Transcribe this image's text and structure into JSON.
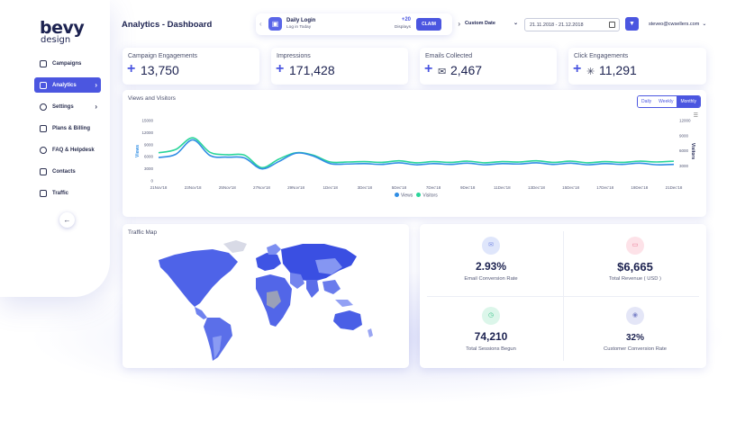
{
  "brand": {
    "line1": "bevy",
    "line2": "design"
  },
  "sidebar": {
    "items": [
      {
        "label": "Campaigns",
        "chevron": false
      },
      {
        "label": "Analytics",
        "chevron": true,
        "active": true
      },
      {
        "label": "Settings",
        "chevron": true
      },
      {
        "label": "Plans & Billing",
        "chevron": false
      },
      {
        "label": "FAQ & Helpdesk",
        "chevron": false
      },
      {
        "label": "Contacts",
        "chevron": false
      },
      {
        "label": "Traffic",
        "chevron": false
      }
    ],
    "collapse_icon": "←"
  },
  "header": {
    "title": "Analytics - Dashboard",
    "daily": {
      "title": "Daily Login",
      "subtitle": "Log in Today",
      "points": "+20",
      "points_label": "Displays",
      "claim": "CLAIM"
    },
    "date_select": "Custom Date",
    "date_range": "21.11.2018 - 21.12.2018",
    "user": "steveo@cwsellers.com"
  },
  "kpis": [
    {
      "label": "Campaign Engagements",
      "value": "13,750",
      "icon": "plus-icon"
    },
    {
      "label": "Impressions",
      "value": "171,428",
      "icon": "plus-icon"
    },
    {
      "label": "Emails Collected",
      "value": "2,467",
      "icon": "envelope-icon"
    },
    {
      "label": "Click Engagements",
      "value": "11,291",
      "icon": "click-icon"
    }
  ],
  "chart_card": {
    "title": "Views and Visitors",
    "toggles": [
      "Daily",
      "Weekly",
      "Monthly"
    ],
    "active_toggle": "Monthly"
  },
  "chart_data": {
    "type": "line",
    "x": [
      "21Nov'18",
      "22Nov'18",
      "23Nov'18",
      "24Nov'18",
      "25Nov'18",
      "26Nov'18",
      "27Nov'18",
      "28Nov'18",
      "29Nov'18",
      "30Nov'18",
      "1Dec'18",
      "2Dec'18",
      "3Dec'18",
      "4Dec'18",
      "5Dec'18",
      "6Dec'18",
      "7Dec'18",
      "8Dec'18",
      "9Dec'18",
      "10Dec'18",
      "11Dec'18",
      "12Dec'18",
      "13Dec'18",
      "14Dec'18",
      "15Dec'18",
      "16Dec'18",
      "17Dec'18",
      "18Dec'18",
      "19Dec'18",
      "20Dec'18",
      "21Dec'18"
    ],
    "tick_labels": [
      "21Nov'18",
      "23Nov'18",
      "25Nov'18",
      "27Nov'18",
      "29Nov'18",
      "1Dec'18",
      "3Dec'18",
      "5Dec'18",
      "7Dec'18",
      "9Dec'18",
      "11Dec'18",
      "13Dec'18",
      "15Dec'18",
      "17Dec'18",
      "19Dec'18",
      "21Dec'18"
    ],
    "ylabel": "Views",
    "y2label": "Visitors",
    "ylim": [
      0,
      15000
    ],
    "yticks": [
      0,
      3000,
      6000,
      9000,
      12000,
      15000
    ],
    "y2lim": [
      0,
      12000
    ],
    "y2ticks": [
      3000,
      6000,
      9000,
      12000
    ],
    "series": [
      {
        "name": "Views",
        "color": "#2f8de4",
        "values": [
          5800,
          6600,
          10200,
          6300,
          5900,
          5700,
          3000,
          4800,
          6900,
          6200,
          4300,
          4200,
          4300,
          4100,
          4500,
          4000,
          4300,
          4100,
          4400,
          4000,
          4300,
          4200,
          4500,
          4100,
          4400,
          4000,
          4300,
          4100,
          4400,
          4000,
          4100
        ]
      },
      {
        "name": "Visitors",
        "color": "#2ad59a",
        "values": [
          7000,
          7800,
          10700,
          7100,
          6500,
          6400,
          3300,
          5400,
          7000,
          6400,
          4700,
          4700,
          4800,
          4600,
          5000,
          4500,
          4800,
          4600,
          4900,
          4500,
          4800,
          4700,
          5000,
          4600,
          4900,
          4500,
          4800,
          4600,
          4900,
          4700,
          4900
        ]
      }
    ],
    "legend": "bottom-center",
    "grid": false
  },
  "map_card": {
    "title": "Traffic Map"
  },
  "stats": [
    {
      "value": "2.93%",
      "label": "Email Conversion Rate",
      "icon": "email-icon",
      "color": "#b9c8f3"
    },
    {
      "value": "$6,665",
      "label": "Total Revenue ( USD )",
      "icon": "wallet-icon",
      "color": "#f7b7c6"
    },
    {
      "value": "74,210",
      "label": "Total Sessions Begun",
      "icon": "timer-icon",
      "color": "#b8ecd3"
    },
    {
      "value": "32%",
      "label": "Customer Conversion Rate",
      "icon": "user-icon",
      "color": "#c9cdf0"
    }
  ],
  "colors": {
    "accent": "#4b56e0",
    "views": "#2f8de4",
    "visitors": "#2ad59a"
  }
}
